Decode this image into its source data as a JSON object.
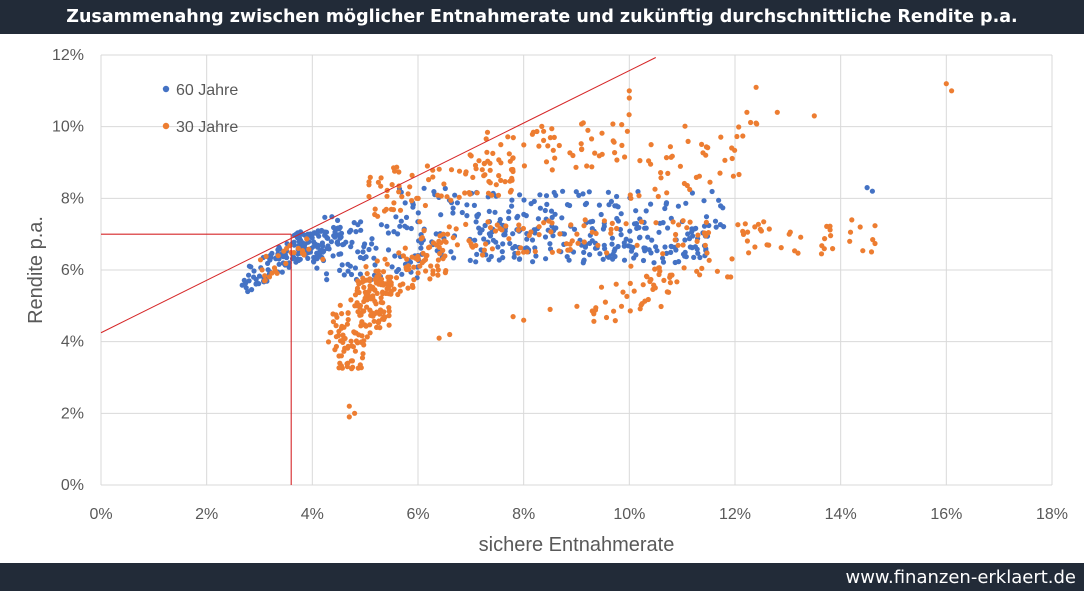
{
  "title": "Zusammenahng zwischen möglicher Entnahmerate und zukünftig durchschnittliche Rendite p.a.",
  "footer": "www.finanzen-erklaert.de",
  "colors": {
    "series_60": "#4472c4",
    "series_30": "#ed7d31",
    "line": "#d62728",
    "grid": "#d9d9d9",
    "bar": "#222b38"
  },
  "chart_data": {
    "type": "scatter",
    "title": "Zusammenahng zwischen möglicher Entnahmerate und zukünftig durchschnittliche Rendite p.a.",
    "xlabel": "sichere Entnahmerate",
    "ylabel": "Rendite p.a.",
    "xlim": [
      0,
      0.18
    ],
    "ylim": [
      0,
      0.12
    ],
    "x_ticks": [
      "0%",
      "2%",
      "4%",
      "6%",
      "8%",
      "10%",
      "12%",
      "14%",
      "16%",
      "18%"
    ],
    "y_ticks": [
      "0%",
      "2%",
      "4%",
      "6%",
      "8%",
      "10%",
      "12%"
    ],
    "grid": true,
    "legend": "top-left",
    "series": [
      {
        "name": "60 Jahre",
        "color": "#4472c4",
        "clusters": [
          {
            "x": [
              0.026,
              0.04
            ],
            "y": [
              0.054,
              0.07
            ],
            "n": 80,
            "trend": 0.85
          },
          {
            "x": [
              0.036,
              0.046
            ],
            "y": [
              0.063,
              0.072
            ],
            "n": 70,
            "trend": 0.2
          },
          {
            "x": [
              0.04,
              0.06
            ],
            "y": [
              0.057,
              0.075
            ],
            "n": 90,
            "trend": 0.0
          },
          {
            "x": [
              0.06,
              0.115
            ],
            "y": [
              0.062,
              0.072
            ],
            "n": 190,
            "trend": 0.0
          },
          {
            "x": [
              0.07,
              0.118
            ],
            "y": [
              0.07,
              0.082
            ],
            "n": 110,
            "trend": 0.0
          },
          {
            "x": [
              0.055,
              0.075
            ],
            "y": [
              0.075,
              0.083
            ],
            "n": 25,
            "trend": 0.0
          }
        ],
        "points": [
          {
            "x": 0.145,
            "y": 0.083
          },
          {
            "x": 0.146,
            "y": 0.082
          }
        ]
      },
      {
        "name": "30 Jahre",
        "color": "#ed7d31",
        "clusters": [
          {
            "x": [
              0.03,
              0.04
            ],
            "y": [
              0.057,
              0.069
            ],
            "n": 25,
            "trend": 0.6
          },
          {
            "x": [
              0.043,
              0.055
            ],
            "y": [
              0.036,
              0.058
            ],
            "n": 120,
            "trend": 0.5
          },
          {
            "x": [
              0.045,
              0.05
            ],
            "y": [
              0.032,
              0.04
            ],
            "n": 25,
            "trend": 0.0
          },
          {
            "x": [
              0.048,
              0.066
            ],
            "y": [
              0.05,
              0.07
            ],
            "n": 100,
            "trend": 0.6
          },
          {
            "x": [
              0.05,
              0.078
            ],
            "y": [
              0.075,
              0.093
            ],
            "n": 80,
            "trend": 0.4
          },
          {
            "x": [
              0.072,
              0.1
            ],
            "y": [
              0.085,
              0.104
            ],
            "n": 60,
            "trend": 0.3
          },
          {
            "x": [
              0.1,
              0.125
            ],
            "y": [
              0.08,
              0.104
            ],
            "n": 45,
            "trend": 0.4
          },
          {
            "x": [
              0.06,
              0.115
            ],
            "y": [
              0.064,
              0.074
            ],
            "n": 90,
            "trend": 0.0
          },
          {
            "x": [
              0.09,
              0.108
            ],
            "y": [
              0.045,
              0.058
            ],
            "n": 30,
            "trend": 0.3
          },
          {
            "x": [
              0.1,
              0.12
            ],
            "y": [
              0.055,
              0.064
            ],
            "n": 25,
            "trend": 0.4
          },
          {
            "x": [
              0.12,
              0.148
            ],
            "y": [
              0.064,
              0.074
            ],
            "n": 40,
            "trend": 0.0
          }
        ],
        "points": [
          {
            "x": 0.047,
            "y": 0.022
          },
          {
            "x": 0.048,
            "y": 0.02
          },
          {
            "x": 0.047,
            "y": 0.019
          },
          {
            "x": 0.16,
            "y": 0.112
          },
          {
            "x": 0.161,
            "y": 0.11
          },
          {
            "x": 0.124,
            "y": 0.111
          },
          {
            "x": 0.128,
            "y": 0.104
          },
          {
            "x": 0.135,
            "y": 0.103
          },
          {
            "x": 0.124,
            "y": 0.101
          },
          {
            "x": 0.1,
            "y": 0.11
          },
          {
            "x": 0.1,
            "y": 0.108
          },
          {
            "x": 0.064,
            "y": 0.041
          },
          {
            "x": 0.066,
            "y": 0.042
          },
          {
            "x": 0.078,
            "y": 0.047
          },
          {
            "x": 0.08,
            "y": 0.046
          },
          {
            "x": 0.085,
            "y": 0.049
          },
          {
            "x": 0.042,
            "y": 0.063
          },
          {
            "x": 0.046,
            "y": 0.044
          }
        ]
      }
    ],
    "lines": [
      {
        "name": "Grenzlinie",
        "x": [
          0.0,
          0.105
        ],
        "y": [
          0.0425,
          0.1193
        ]
      },
      {
        "name": "Hilfslinie horizontal",
        "x": [
          0.0,
          0.036
        ],
        "y": [
          0.07,
          0.07
        ]
      },
      {
        "name": "Hilfslinie vertikal",
        "x": [
          0.036,
          0.036
        ],
        "y": [
          0.0,
          0.07
        ]
      }
    ]
  }
}
